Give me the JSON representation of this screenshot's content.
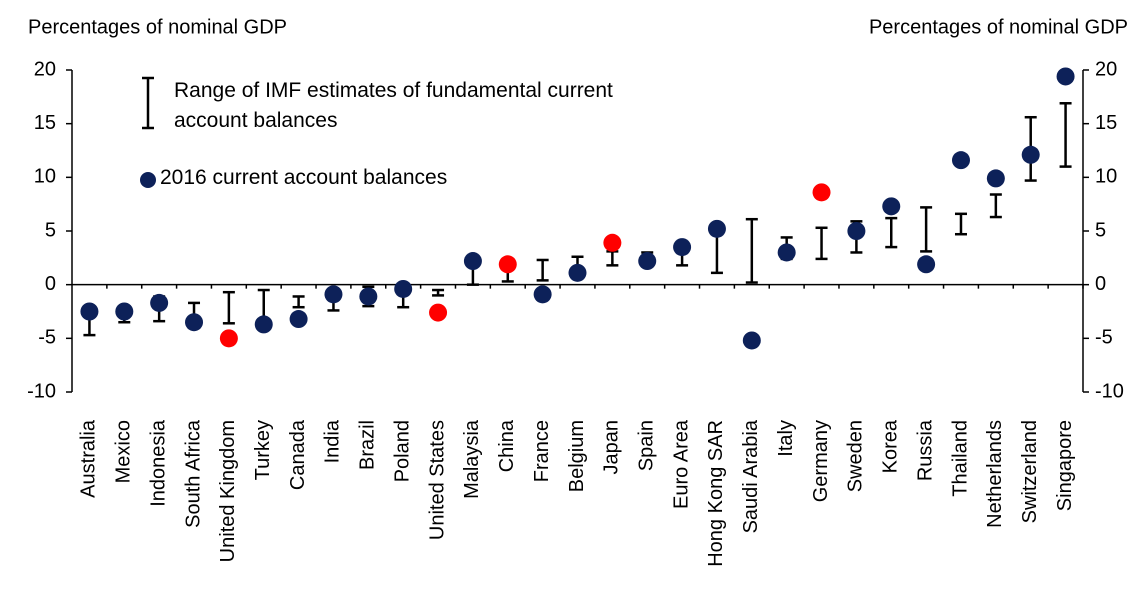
{
  "chart_data": {
    "type": "range-dot",
    "ylabel": "Percentages of nominal GDP",
    "y2label": "Percentages of nominal GDP",
    "categories": [
      "Australia",
      "Mexico",
      "Indonesia",
      "South Africa",
      "United Kingdom",
      "Turkey",
      "Canada",
      "India",
      "Brazil",
      "Poland",
      "United States",
      "Malaysia",
      "China",
      "France",
      "Belgium",
      "Japan",
      "Spain",
      "Euro Area",
      "Hong Kong SAR",
      "Saudi Arabia",
      "Italy",
      "Germany",
      "Sweden",
      "Korea",
      "Russia",
      "Thailand",
      "Netherlands",
      "Switzerland",
      "Singapore"
    ],
    "series": [
      {
        "name": "Range of IMF estimates of fundamental current account balances",
        "color": "#000000",
        "low": [
          -4.7,
          -3.5,
          -3.4,
          -3.2,
          -3.6,
          -3.9,
          -2.1,
          -2.4,
          -2.0,
          -2.1,
          -1.0,
          0.0,
          0.3,
          0.4,
          0.8,
          1.8,
          1.7,
          1.8,
          1.1,
          0.2,
          2.4,
          2.4,
          3.0,
          3.5,
          3.1,
          4.7,
          6.3,
          9.7,
          11.0
        ],
        "high": [
          -2.4,
          -2.4,
          -1.1,
          -1.7,
          -0.7,
          -0.5,
          -1.1,
          -0.4,
          -0.2,
          -0.2,
          -0.5,
          2.4,
          2.1,
          2.3,
          2.6,
          3.1,
          3.0,
          3.4,
          5.6,
          6.1,
          4.4,
          5.3,
          5.9,
          6.2,
          7.2,
          6.6,
          8.4,
          15.6,
          16.9
        ]
      },
      {
        "name": "2016 current account balances",
        "color": "#0d2159",
        "values": [
          -2.5,
          -2.5,
          -1.7,
          -3.5,
          -5.0,
          -3.7,
          -3.2,
          -0.9,
          -1.1,
          -0.4,
          -2.6,
          2.2,
          1.9,
          -0.9,
          1.1,
          3.9,
          2.2,
          3.5,
          5.2,
          -5.2,
          3.0,
          8.6,
          5.0,
          7.3,
          1.9,
          11.6,
          9.9,
          12.1,
          19.4
        ],
        "colors": [
          "#0d2159",
          "#0d2159",
          "#0d2159",
          "#0d2159",
          "#ff0000",
          "#0d2159",
          "#0d2159",
          "#0d2159",
          "#0d2159",
          "#0d2159",
          "#ff0000",
          "#0d2159",
          "#ff0000",
          "#0d2159",
          "#0d2159",
          "#ff0000",
          "#0d2159",
          "#0d2159",
          "#0d2159",
          "#0d2159",
          "#0d2159",
          "#ff0000",
          "#0d2159",
          "#0d2159",
          "#0d2159",
          "#0d2159",
          "#0d2159",
          "#0d2159",
          "#0d2159"
        ]
      }
    ],
    "ylim": [
      -10,
      20
    ],
    "yticks": [
      -10,
      -5,
      0,
      5,
      10,
      15,
      20
    ],
    "y2lim": [
      -10,
      20
    ],
    "y2ticks": [
      -10,
      -5,
      0,
      5,
      10,
      15,
      20
    ]
  }
}
